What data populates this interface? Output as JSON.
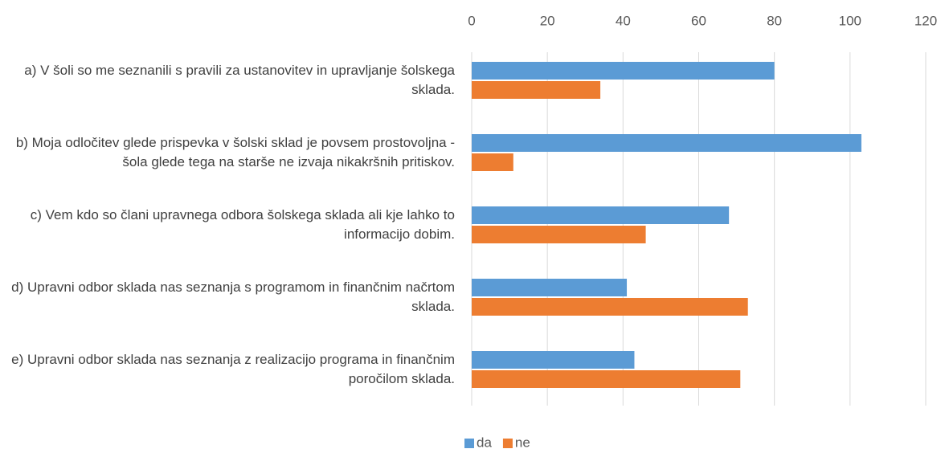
{
  "chart_data": {
    "type": "bar",
    "orientation": "horizontal",
    "categories": [
      "a) V šoli so me seznanili s pravili za ustanovitev in upravljanje šolskega sklada.",
      "b) Moja odločitev glede prispevka v šolski sklad je povsem prostovoljna - šola glede tega na starše ne izvaja nikakršnih pritiskov.",
      "c) Vem kdo so člani upravnega odbora šolskega sklada ali kje lahko to informacijo dobim.",
      "d) Upravni odbor sklada nas seznanja s programom in finančnim načrtom sklada.",
      "e) Upravni odbor sklada nas seznanja z realizacijo programa in finančnim poročilom sklada."
    ],
    "series": [
      {
        "name": "da",
        "color": "#5b9bd5",
        "values": [
          80,
          103,
          68,
          41,
          43
        ]
      },
      {
        "name": "ne",
        "color": "#ed7d31",
        "values": [
          34,
          11,
          46,
          73,
          71
        ]
      }
    ],
    "xlim": [
      0,
      120
    ],
    "xticks": [
      0,
      20,
      40,
      60,
      80,
      100,
      120
    ],
    "grid": true,
    "legend": "bottom"
  }
}
